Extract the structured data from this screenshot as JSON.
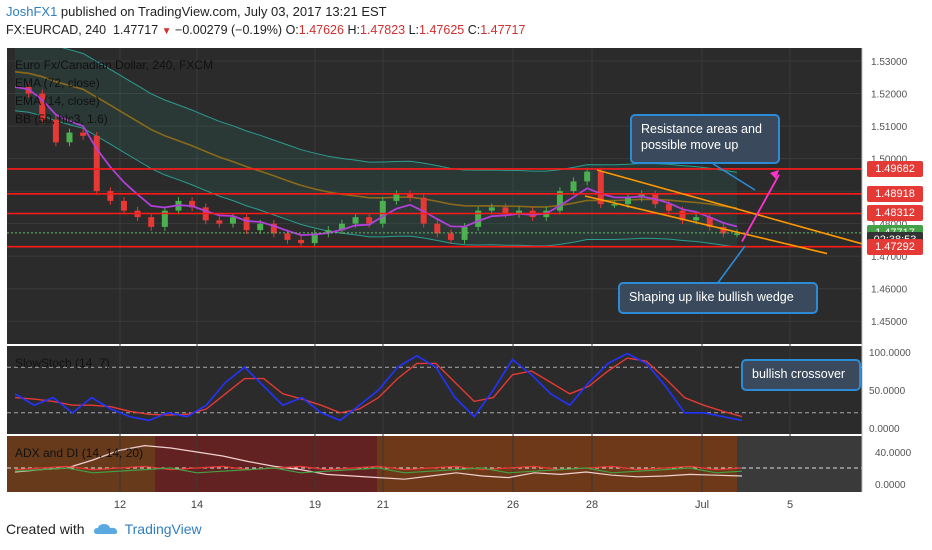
{
  "header": {
    "user": "JoshFX1",
    "published": " published on TradingView.com, July 03, 2017 13:21 EST",
    "symbol": "FX:EURCAD, 240",
    "last": "1.47717",
    "change_arrow": "▼",
    "change": "−0.00279 (−0.19%)",
    "o_label": "O:",
    "o": "1.47626",
    "h_label": "H:",
    "h": "1.47823",
    "l_label": "L:",
    "l": "1.47625",
    "c_label": "C:",
    "c": "1.47717"
  },
  "legend": {
    "title": "Euro Fx/Canadian Dollar, 240, FXCM",
    "ema72": "EMA (72, close)",
    "ema14": "EMA (14, close)",
    "bb": "BB (50, hlc3, 1.6)",
    "stoch": "SlowStoch (14, 7)",
    "adx": "ADX and DI (14, 14, 20)"
  },
  "notes": {
    "resistance": "Resistance areas and possible move up",
    "wedge": "Shaping up like bullish wedge",
    "crossover": "bullish crossover"
  },
  "footer": {
    "created": "Created with",
    "brand": "TradingView"
  },
  "colors": {
    "background": "#2b2b2b",
    "up": "#4caf50",
    "down": "#e53935",
    "resistance": "#ff1a1a",
    "wedge": "#ff9800",
    "arrow": "#ff33cc",
    "ema14": "#b040d8",
    "ema72": "#8a6a1a",
    "bb": "#2a9d8f",
    "stoch_k": "#2233ff",
    "stoch_d": "#e53935"
  },
  "chart_data": {
    "type": "candlestick",
    "x_ticks": [
      "12",
      "14",
      "19",
      "21",
      "26",
      "28",
      "Jul",
      "5"
    ],
    "y_ticks": [
      "1.53000",
      "1.52000",
      "1.51000",
      "1.50000",
      "1.49000",
      "1.48000",
      "1.47000",
      "1.46000",
      "1.45000"
    ],
    "ylim": [
      1.443,
      1.534
    ],
    "resistance_levels": [
      1.49682,
      1.48918,
      1.48312,
      1.47292
    ],
    "price_labels": [
      {
        "text": "1.49682",
        "value": 1.49682,
        "kind": "red"
      },
      {
        "text": "1.48918",
        "value": 1.48918,
        "kind": "red"
      },
      {
        "text": "1.48312",
        "value": 1.48312,
        "kind": "red"
      },
      {
        "text": "1.47717",
        "value": 1.47717,
        "kind": "green"
      },
      {
        "text": "02:38:53",
        "value": 1.47502,
        "kind": "dark"
      },
      {
        "text": "1.47292",
        "value": 1.47292,
        "kind": "red"
      }
    ],
    "close_path": [
      1.522,
      1.52,
      1.512,
      1.505,
      1.508,
      1.507,
      1.49,
      1.487,
      1.484,
      1.482,
      1.479,
      1.484,
      1.487,
      1.485,
      1.481,
      1.48,
      1.482,
      1.478,
      1.48,
      1.477,
      1.475,
      1.474,
      1.477,
      1.478,
      1.48,
      1.482,
      1.48,
      1.487,
      1.489,
      1.488,
      1.48,
      1.477,
      1.475,
      1.479,
      1.484,
      1.485,
      1.483,
      1.484,
      1.482,
      1.484,
      1.49,
      1.493,
      1.496,
      1.486,
      1.486,
      1.488,
      1.489,
      1.486,
      1.484,
      1.481,
      1.482,
      1.479,
      1.477,
      1.477
    ],
    "stoch_ticks": [
      "100.0000",
      "50.0000",
      "0.0000"
    ],
    "stoch_k": [
      45,
      30,
      40,
      20,
      40,
      25,
      15,
      10,
      20,
      15,
      30,
      60,
      80,
      55,
      30,
      40,
      20,
      10,
      30,
      50,
      80,
      95,
      80,
      40,
      15,
      50,
      90,
      70,
      45,
      30,
      60,
      85,
      98,
      85,
      55,
      20,
      20,
      15,
      10
    ],
    "stoch_d": [
      40,
      38,
      35,
      30,
      30,
      28,
      22,
      18,
      17,
      18,
      25,
      45,
      65,
      65,
      45,
      38,
      30,
      20,
      25,
      40,
      65,
      85,
      85,
      60,
      35,
      40,
      70,
      75,
      60,
      45,
      55,
      75,
      92,
      88,
      65,
      40,
      30,
      22,
      15
    ],
    "adx_ticks": [
      "40.0000",
      "0.0000"
    ],
    "adx": [
      15,
      18,
      20,
      30,
      42,
      48,
      45,
      40,
      35,
      28,
      22,
      18,
      12,
      10,
      8,
      6,
      10,
      14,
      10,
      8,
      14,
      12,
      15,
      11,
      9,
      10,
      12,
      11,
      10
    ]
  }
}
